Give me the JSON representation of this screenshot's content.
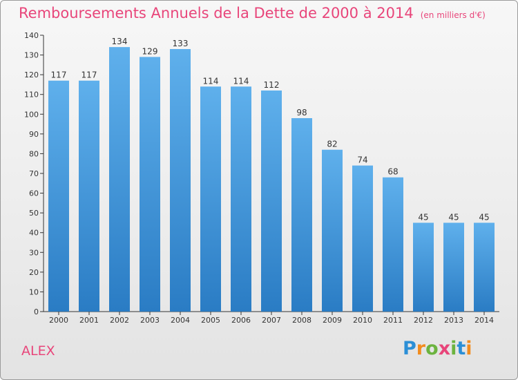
{
  "chart_data": {
    "type": "bar",
    "title": "Remboursements Annuels de la Dette de 2000 à 2014",
    "subtitle": "(en milliers d'€)",
    "categories": [
      "2000",
      "2001",
      "2002",
      "2003",
      "2004",
      "2005",
      "2006",
      "2007",
      "2008",
      "2009",
      "2010",
      "2011",
      "2012",
      "2013",
      "2014"
    ],
    "values": [
      117,
      117,
      134,
      129,
      133,
      114,
      114,
      112,
      98,
      82,
      74,
      68,
      45,
      45,
      45
    ],
    "xlabel": "",
    "ylabel": "",
    "ylim": [
      0,
      140
    ],
    "yticks": [
      0,
      10,
      20,
      30,
      40,
      50,
      60,
      70,
      80,
      90,
      100,
      110,
      120,
      130,
      140
    ],
    "grid": false,
    "bar_color": "#3d8fd6",
    "value_labels": true
  },
  "footer": {
    "town": "ALEX",
    "logo_letters": [
      "P",
      "r",
      "o",
      "x",
      "i",
      "t",
      "i"
    ],
    "logo_colors": [
      "#2b8fd6",
      "#f28c1e",
      "#6cb33f",
      "#e8457a",
      "#6cb33f",
      "#2b8fd6",
      "#f28c1e"
    ]
  },
  "colors": {
    "title": "#e8457a",
    "accent": "#3d8fd6"
  }
}
